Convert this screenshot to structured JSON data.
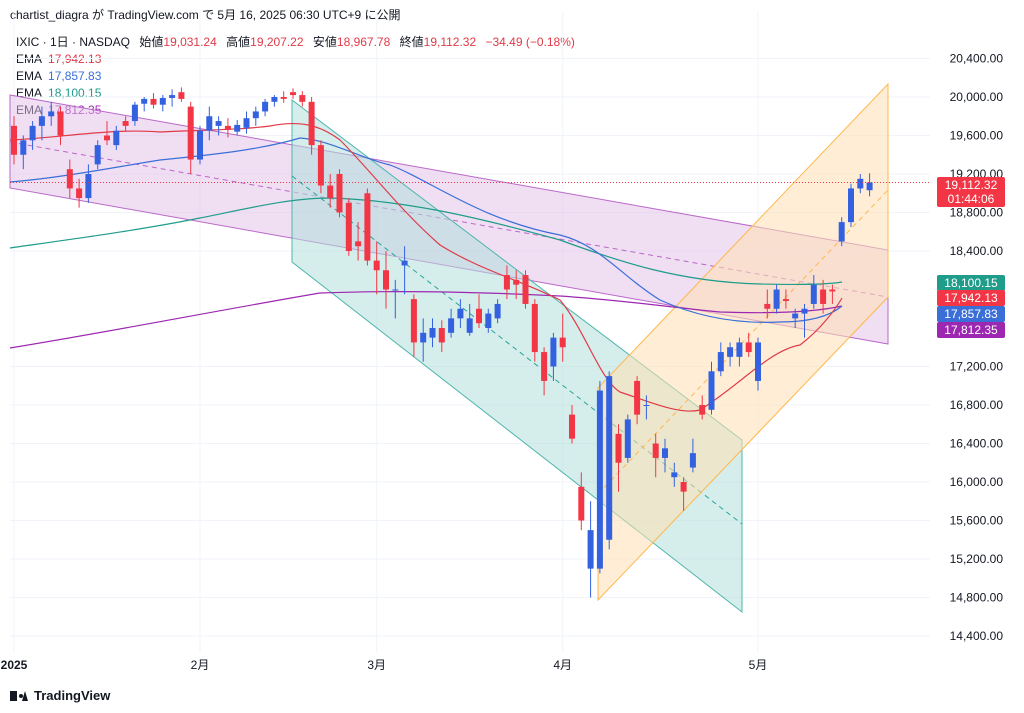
{
  "header": {
    "publisher_line": "chartist_diagra が TradingView.com で 5月 16, 2025 06:30 UTC+9 に公開"
  },
  "instrument": {
    "title": "IXIC · 1日 · NASDAQ",
    "open_label": "始値",
    "open": "19,031.24",
    "high_label": "高値",
    "high": "19,207.22",
    "low_label": "安値",
    "low": "18,967.78",
    "close_label": "終値",
    "close": "19,112.32",
    "change": "−34.49 (−0.18%)"
  },
  "ema_legend": [
    {
      "label": "EMA",
      "value": "17,942.13",
      "color": "#e03a48"
    },
    {
      "label": "EMA",
      "value": "17,857.83",
      "color": "#3b6fd8"
    },
    {
      "label": "EMA",
      "value": "18,100.15",
      "color": "#1f9c8a"
    },
    {
      "label": "EMA",
      "value": "17,812.35",
      "color": "#9c27b0"
    }
  ],
  "price_badges": [
    {
      "value": "19,112.32",
      "sub": "01:44:06",
      "price": 19112.32,
      "color": "#f23645"
    },
    {
      "value": "18,100.15",
      "price": 18100.15,
      "color": "#1f9c8a"
    },
    {
      "value": "17,942.13",
      "price": 17942.13,
      "color": "#f23645"
    },
    {
      "value": "17,857.83",
      "price": 17857.83,
      "color": "#3b6fd8"
    },
    {
      "value": "17,812.35",
      "price": 17812.35,
      "color": "#9c27b0"
    }
  ],
  "brand": {
    "name": "TradingView"
  },
  "chart_data": {
    "type": "candlestick",
    "ylim": [
      14200,
      20600
    ],
    "y_ticks": [
      {
        "value": 14400,
        "label": "14,400.00"
      },
      {
        "value": 14800,
        "label": "14,800.00"
      },
      {
        "value": 15200,
        "label": "15,200.00"
      },
      {
        "value": 15600,
        "label": "15,600.00"
      },
      {
        "value": 16000,
        "label": "16,000.00"
      },
      {
        "value": 16400,
        "label": "16,400.00"
      },
      {
        "value": 16800,
        "label": "16,800.00"
      },
      {
        "value": 17200,
        "label": "17,200.00"
      },
      {
        "value": 18400,
        "label": "18,400.00"
      },
      {
        "value": 18800,
        "label": "18,800.00"
      },
      {
        "value": 19200,
        "label": "19,200.00"
      },
      {
        "value": 19600,
        "label": "19,600.00"
      },
      {
        "value": 20000,
        "label": "20,000.00"
      },
      {
        "value": 20400,
        "label": "20,400.00"
      }
    ],
    "x_ticks": [
      {
        "index": 0,
        "label": "2025"
      },
      {
        "index": 20,
        "label": "2月"
      },
      {
        "index": 39,
        "label": "3月"
      },
      {
        "index": 59,
        "label": "4月"
      },
      {
        "index": 80,
        "label": "5月"
      }
    ],
    "last_price": 19112.32,
    "candles": [
      {
        "o": 19700,
        "h": 19800,
        "l": 19300,
        "c": 19400
      },
      {
        "o": 19400,
        "h": 19600,
        "l": 19250,
        "c": 19550
      },
      {
        "o": 19550,
        "h": 19750,
        "l": 19450,
        "c": 19700
      },
      {
        "o": 19700,
        "h": 19900,
        "l": 19550,
        "c": 19800
      },
      {
        "o": 19800,
        "h": 19950,
        "l": 19700,
        "c": 19850
      },
      {
        "o": 19850,
        "h": 19900,
        "l": 19500,
        "c": 19600
      },
      {
        "o": 19250,
        "h": 19350,
        "l": 18950,
        "c": 19050
      },
      {
        "o": 19050,
        "h": 19150,
        "l": 18850,
        "c": 18950
      },
      {
        "o": 18950,
        "h": 19300,
        "l": 18900,
        "c": 19200
      },
      {
        "o": 19300,
        "h": 19550,
        "l": 19250,
        "c": 19500
      },
      {
        "o": 19600,
        "h": 19750,
        "l": 19500,
        "c": 19550
      },
      {
        "o": 19500,
        "h": 19700,
        "l": 19450,
        "c": 19650
      },
      {
        "o": 19750,
        "h": 19800,
        "l": 19650,
        "c": 19700
      },
      {
        "o": 19750,
        "h": 19950,
        "l": 19700,
        "c": 19920
      },
      {
        "o": 19930,
        "h": 20000,
        "l": 19850,
        "c": 19980
      },
      {
        "o": 19980,
        "h": 20040,
        "l": 19880,
        "c": 19920
      },
      {
        "o": 19920,
        "h": 20020,
        "l": 19850,
        "c": 19990
      },
      {
        "o": 19990,
        "h": 20080,
        "l": 19900,
        "c": 20020
      },
      {
        "o": 20050,
        "h": 20100,
        "l": 19950,
        "c": 19980
      },
      {
        "o": 19900,
        "h": 19950,
        "l": 19200,
        "c": 19350
      },
      {
        "o": 19350,
        "h": 19700,
        "l": 19300,
        "c": 19650
      },
      {
        "o": 19650,
        "h": 19900,
        "l": 19550,
        "c": 19800
      },
      {
        "o": 19700,
        "h": 19800,
        "l": 19600,
        "c": 19750
      },
      {
        "o": 19700,
        "h": 19780,
        "l": 19580,
        "c": 19660
      },
      {
        "o": 19640,
        "h": 19760,
        "l": 19600,
        "c": 19710
      },
      {
        "o": 19680,
        "h": 19850,
        "l": 19620,
        "c": 19780
      },
      {
        "o": 19780,
        "h": 19900,
        "l": 19700,
        "c": 19850
      },
      {
        "o": 19850,
        "h": 19980,
        "l": 19800,
        "c": 19950
      },
      {
        "o": 19950,
        "h": 20020,
        "l": 19900,
        "c": 20000
      },
      {
        "o": 20000,
        "h": 20060,
        "l": 19940,
        "c": 19980
      },
      {
        "o": 20050,
        "h": 20090,
        "l": 19980,
        "c": 20020
      },
      {
        "o": 20020,
        "h": 20060,
        "l": 19900,
        "c": 19950
      },
      {
        "o": 19950,
        "h": 20000,
        "l": 19400,
        "c": 19500
      },
      {
        "o": 19500,
        "h": 19550,
        "l": 19000,
        "c": 19080
      },
      {
        "o": 19080,
        "h": 19200,
        "l": 18850,
        "c": 18950
      },
      {
        "o": 19200,
        "h": 19250,
        "l": 18750,
        "c": 18800
      },
      {
        "o": 18900,
        "h": 18950,
        "l": 18350,
        "c": 18400
      },
      {
        "o": 18500,
        "h": 18700,
        "l": 18300,
        "c": 18450
      },
      {
        "o": 19000,
        "h": 19050,
        "l": 18250,
        "c": 18300
      },
      {
        "o": 18300,
        "h": 18500,
        "l": 17950,
        "c": 18200
      },
      {
        "o": 18200,
        "h": 18400,
        "l": 17800,
        "c": 18000
      },
      {
        "o": 18000,
        "h": 18100,
        "l": 17700,
        "c": 18000
      },
      {
        "o": 18250,
        "h": 18450,
        "l": 17950,
        "c": 18300
      },
      {
        "o": 17900,
        "h": 17950,
        "l": 17300,
        "c": 17450
      },
      {
        "o": 17450,
        "h": 17700,
        "l": 17250,
        "c": 17550
      },
      {
        "o": 17500,
        "h": 17700,
        "l": 17400,
        "c": 17600
      },
      {
        "o": 17600,
        "h": 17680,
        "l": 17350,
        "c": 17450
      },
      {
        "o": 17550,
        "h": 17800,
        "l": 17500,
        "c": 17700
      },
      {
        "o": 17700,
        "h": 17900,
        "l": 17600,
        "c": 17800
      },
      {
        "o": 17550,
        "h": 17850,
        "l": 17520,
        "c": 17700
      },
      {
        "o": 17800,
        "h": 17950,
        "l": 17600,
        "c": 17650
      },
      {
        "o": 17600,
        "h": 17800,
        "l": 17550,
        "c": 17750
      },
      {
        "o": 17700,
        "h": 17900,
        "l": 17650,
        "c": 17850
      },
      {
        "o": 18150,
        "h": 18250,
        "l": 17900,
        "c": 18000
      },
      {
        "o": 18100,
        "h": 18200,
        "l": 17900,
        "c": 18050
      },
      {
        "o": 18150,
        "h": 18200,
        "l": 17800,
        "c": 17850
      },
      {
        "o": 17850,
        "h": 17900,
        "l": 17250,
        "c": 17350
      },
      {
        "o": 17350,
        "h": 17400,
        "l": 16900,
        "c": 17050
      },
      {
        "o": 17200,
        "h": 17550,
        "l": 17050,
        "c": 17500
      },
      {
        "o": 17500,
        "h": 17750,
        "l": 17250,
        "c": 17400
      },
      {
        "o": 16700,
        "h": 16800,
        "l": 16400,
        "c": 16450
      },
      {
        "o": 15950,
        "h": 16100,
        "l": 15500,
        "c": 15600
      },
      {
        "o": 15100,
        "h": 15800,
        "l": 14800,
        "c": 15500
      },
      {
        "o": 15100,
        "h": 17050,
        "l": 15050,
        "c": 16950
      },
      {
        "o": 15400,
        "h": 17150,
        "l": 15300,
        "c": 17100
      },
      {
        "o": 16500,
        "h": 16600,
        "l": 15900,
        "c": 16200
      },
      {
        "o": 16250,
        "h": 16700,
        "l": 16200,
        "c": 16650
      },
      {
        "o": 17050,
        "h": 17100,
        "l": 16600,
        "c": 16700
      },
      {
        "o": 16800,
        "h": 16900,
        "l": 16650,
        "c": 16800
      },
      {
        "o": 16400,
        "h": 16500,
        "l": 16050,
        "c": 16250
      },
      {
        "o": 16250,
        "h": 16450,
        "l": 16100,
        "c": 16350
      },
      {
        "o": 16050,
        "h": 16200,
        "l": 15950,
        "c": 16100
      },
      {
        "o": 16000,
        "h": 16050,
        "l": 15700,
        "c": 15900
      },
      {
        "o": 16150,
        "h": 16450,
        "l": 16100,
        "c": 16300
      },
      {
        "o": 16800,
        "h": 16900,
        "l": 16650,
        "c": 16700
      },
      {
        "o": 16750,
        "h": 17250,
        "l": 16700,
        "c": 17150
      },
      {
        "o": 17150,
        "h": 17450,
        "l": 17100,
        "c": 17350
      },
      {
        "o": 17300,
        "h": 17450,
        "l": 17200,
        "c": 17400
      },
      {
        "o": 17300,
        "h": 17500,
        "l": 17200,
        "c": 17450
      },
      {
        "o": 17450,
        "h": 17550,
        "l": 17300,
        "c": 17350
      },
      {
        "o": 17050,
        "h": 17500,
        "l": 16950,
        "c": 17450
      },
      {
        "o": 17850,
        "h": 18000,
        "l": 17700,
        "c": 17800
      },
      {
        "o": 17800,
        "h": 18050,
        "l": 17750,
        "c": 18000
      },
      {
        "o": 17900,
        "h": 18000,
        "l": 17800,
        "c": 17880
      },
      {
        "o": 17700,
        "h": 17800,
        "l": 17600,
        "c": 17750
      },
      {
        "o": 17750,
        "h": 17850,
        "l": 17500,
        "c": 17800
      },
      {
        "o": 17850,
        "h": 18150,
        "l": 17800,
        "c": 18050
      },
      {
        "o": 18000,
        "h": 18100,
        "l": 17750,
        "c": 17850
      },
      {
        "o": 18000,
        "h": 18050,
        "l": 17850,
        "c": 17980
      },
      {
        "o": 18500,
        "h": 18750,
        "l": 18450,
        "c": 18700
      },
      {
        "o": 18700,
        "h": 19100,
        "l": 18650,
        "c": 19050
      },
      {
        "o": 19050,
        "h": 19200,
        "l": 19000,
        "c": 19150
      },
      {
        "o": 19031.24,
        "h": 19207.22,
        "l": 18967.78,
        "c": 19112.32
      }
    ]
  }
}
